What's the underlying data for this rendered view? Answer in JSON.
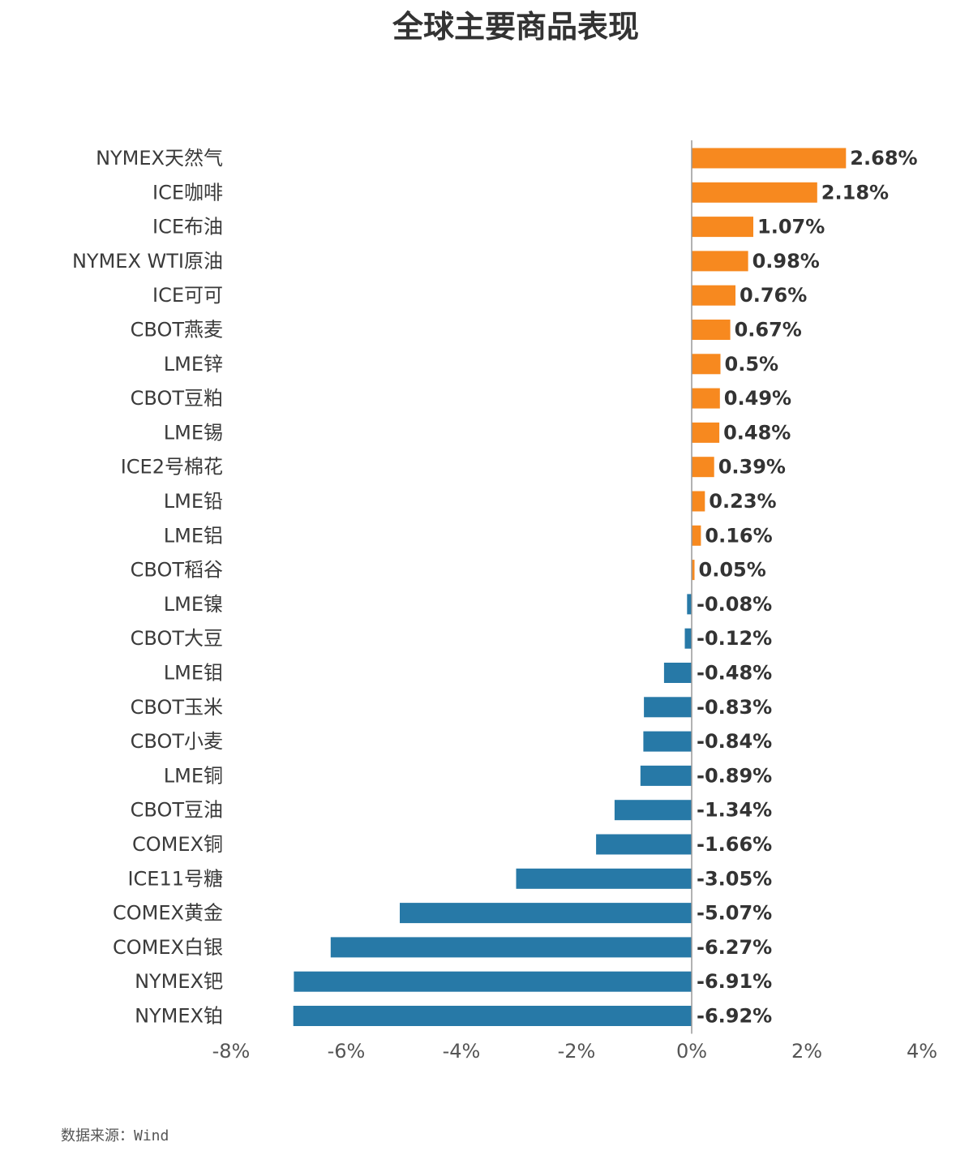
{
  "chart_data": {
    "type": "bar",
    "orientation": "horizontal",
    "title": "全球主要商品表现",
    "xlim": [
      -8,
      4
    ],
    "ticks": [
      -8,
      -6,
      -4,
      -2,
      0,
      2,
      4
    ],
    "tick_labels": [
      "-8%",
      "-6%",
      "-4%",
      "-2%",
      "0%",
      "2%",
      "4%"
    ],
    "positive_color": "#F7891F",
    "negative_color": "#2779A7",
    "grid": false,
    "categories": [
      "NYMEX天然气",
      "ICE咖啡",
      "ICE布油",
      "NYMEX WTI原油",
      "ICE可可",
      "CBOT燕麦",
      "LME锌",
      "CBOT豆粕",
      "LME锡",
      "ICE2号棉花",
      "LME铅",
      "LME铝",
      "CBOT稻谷",
      "LME镍",
      "CBOT大豆",
      "LME钼",
      "CBOT玉米",
      "CBOT小麦",
      "LME铜",
      "CBOT豆油",
      "COMEX铜",
      "ICE11号糖",
      "COMEX黄金",
      "COMEX白银",
      "NYMEX钯",
      "NYMEX铂"
    ],
    "values": [
      2.68,
      2.18,
      1.07,
      0.98,
      0.76,
      0.67,
      0.5,
      0.49,
      0.48,
      0.39,
      0.23,
      0.16,
      0.05,
      -0.08,
      -0.12,
      -0.48,
      -0.83,
      -0.84,
      -0.89,
      -1.34,
      -1.66,
      -3.05,
      -5.07,
      -6.27,
      -6.91,
      -6.92
    ],
    "value_labels": [
      "2.68%",
      "2.18%",
      "1.07%",
      "0.98%",
      "0.76%",
      "0.67%",
      "0.5%",
      "0.49%",
      "0.48%",
      "0.39%",
      "0.23%",
      "0.16%",
      "0.05%",
      "-0.08%",
      "-0.12%",
      "-0.48%",
      "-0.83%",
      "-0.84%",
      "-0.89%",
      "-1.34%",
      "-1.66%",
      "-3.05%",
      "-5.07%",
      "-6.27%",
      "-6.91%",
      "-6.92%"
    ]
  },
  "source": "数据来源：Wind"
}
